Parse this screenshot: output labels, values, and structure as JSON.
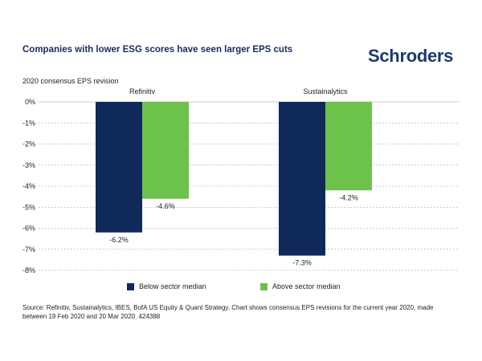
{
  "header": {
    "title": "Companies with lower ESG scores have seen larger EPS cuts",
    "logo": "Schroders"
  },
  "colors": {
    "below": "#0f2a5a",
    "above": "#6cc24a",
    "grid": "#999999",
    "title": "#1a2c5b"
  },
  "chart_data": {
    "type": "bar",
    "title": "Companies with lower ESG scores have seen larger EPS cuts",
    "ylabel": "2020 consensus EPS revision",
    "xlabel": "",
    "categories": [
      "Refinitiv",
      "Sustainalytics"
    ],
    "series": [
      {
        "name": "Below sector median",
        "values": [
          -6.2,
          -7.3
        ],
        "labels": [
          "-6.2%",
          "-7.3%"
        ]
      },
      {
        "name": "Above sector median",
        "values": [
          -4.6,
          -4.2
        ],
        "labels": [
          "-4.6%",
          "-4.2%"
        ]
      }
    ],
    "ylim": [
      -8,
      0
    ],
    "yticks": [
      0,
      -1,
      -2,
      -3,
      -4,
      -5,
      -6,
      -7,
      -8
    ],
    "ytick_labels": [
      "0%",
      "-1%",
      "-2%",
      "-3%",
      "-4%",
      "-5%",
      "-6%",
      "-7%",
      "-8%"
    ],
    "grid": true,
    "legend": "bottom"
  },
  "source": "Source: Refinitiv, Sustainalytics, IBES, BofA US Equity & Quant Strategy. Chart shows consensus EPS revisions for the current year 2020, made between 19 Feb 2020 and 20 Mar 2020. 424388"
}
